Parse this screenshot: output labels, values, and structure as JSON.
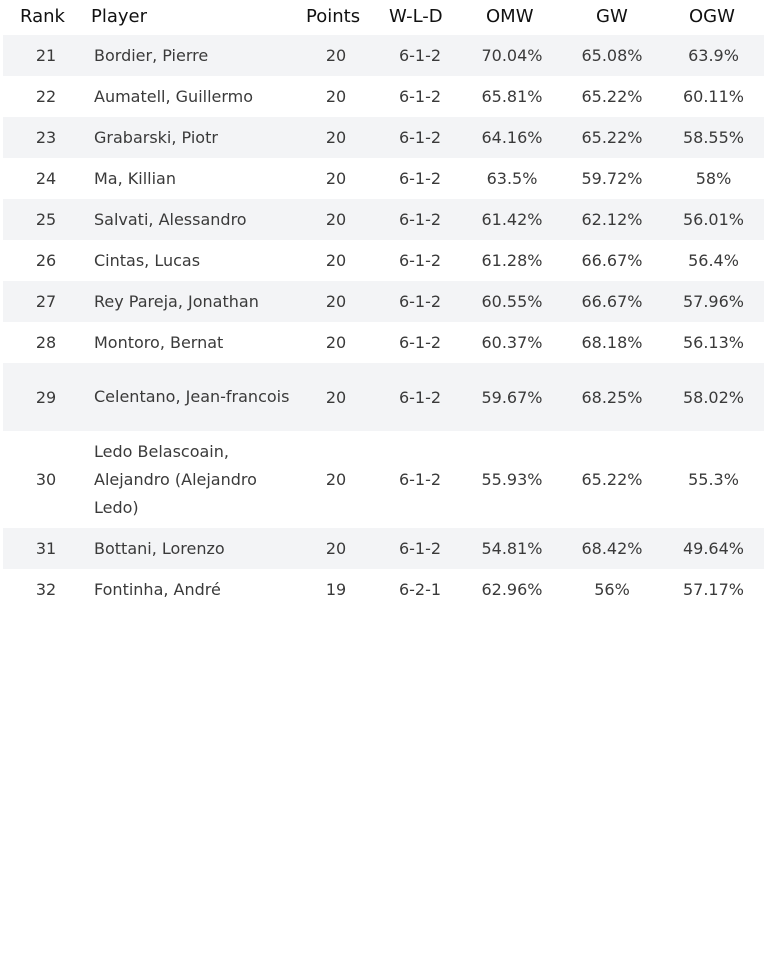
{
  "headers": {
    "rank": "Rank",
    "player": "Player",
    "points": "Points",
    "wld": "W-L-D",
    "omw": "OMW",
    "gw": "GW",
    "ogw": "OGW"
  },
  "rows": [
    {
      "rank": "21",
      "player": "Bordier, Pierre",
      "points": "20",
      "wld": "6-1-2",
      "omw": "70.04%",
      "gw": "65.08%",
      "ogw": "63.9%"
    },
    {
      "rank": "22",
      "player": "Aumatell, Guillermo",
      "points": "20",
      "wld": "6-1-2",
      "omw": "65.81%",
      "gw": "65.22%",
      "ogw": "60.11%"
    },
    {
      "rank": "23",
      "player": "Grabarski, Piotr",
      "points": "20",
      "wld": "6-1-2",
      "omw": "64.16%",
      "gw": "65.22%",
      "ogw": "58.55%"
    },
    {
      "rank": "24",
      "player": "Ma, Killian",
      "points": "20",
      "wld": "6-1-2",
      "omw": "63.5%",
      "gw": "59.72%",
      "ogw": "58%"
    },
    {
      "rank": "25",
      "player": "Salvati, Alessandro",
      "points": "20",
      "wld": "6-1-2",
      "omw": "61.42%",
      "gw": "62.12%",
      "ogw": "56.01%"
    },
    {
      "rank": "26",
      "player": "Cintas, Lucas",
      "points": "20",
      "wld": "6-1-2",
      "omw": "61.28%",
      "gw": "66.67%",
      "ogw": "56.4%"
    },
    {
      "rank": "27",
      "player": "Rey Pareja, Jonathan",
      "points": "20",
      "wld": "6-1-2",
      "omw": "60.55%",
      "gw": "66.67%",
      "ogw": "57.96%"
    },
    {
      "rank": "28",
      "player": "Montoro, Bernat",
      "points": "20",
      "wld": "6-1-2",
      "omw": "60.37%",
      "gw": "68.18%",
      "ogw": "56.13%"
    },
    {
      "rank": "29",
      "player": "Celentano, Jean-francois",
      "points": "20",
      "wld": "6-1-2",
      "omw": "59.67%",
      "gw": "68.25%",
      "ogw": "58.02%"
    },
    {
      "rank": "30",
      "player": "Ledo Belascoain, Alejandro (Alejandro Ledo)",
      "points": "20",
      "wld": "6-1-2",
      "omw": "55.93%",
      "gw": "65.22%",
      "ogw": "55.3%"
    },
    {
      "rank": "31",
      "player": "Bottani, Lorenzo",
      "points": "20",
      "wld": "6-1-2",
      "omw": "54.81%",
      "gw": "68.42%",
      "ogw": "49.64%"
    },
    {
      "rank": "32",
      "player": "Fontinha, André",
      "points": "19",
      "wld": "6-2-1",
      "omw": "62.96%",
      "gw": "56%",
      "ogw": "57.17%"
    }
  ]
}
